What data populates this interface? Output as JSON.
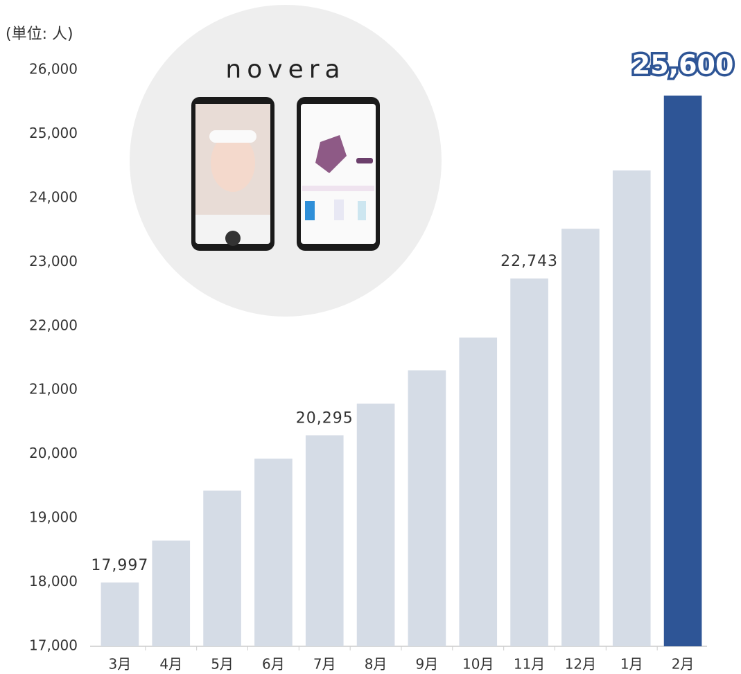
{
  "chart_data": {
    "type": "bar",
    "y_axis_label": "(単位: 人)",
    "logo": "novera",
    "categories": [
      "3月",
      "4月",
      "5月",
      "6月",
      "7月",
      "8月",
      "9月",
      "10月",
      "11月",
      "12月",
      "1月",
      "2月"
    ],
    "values": [
      17997,
      18650,
      19430,
      19930,
      20295,
      20790,
      21310,
      21820,
      22743,
      23520,
      24430,
      25600
    ],
    "value_labels": [
      "17,997",
      null,
      null,
      null,
      "20,295",
      null,
      null,
      null,
      "22,743",
      null,
      null,
      "25,600"
    ],
    "colors": [
      "#d5dce6",
      "#d5dce6",
      "#d5dce6",
      "#d5dce6",
      "#d5dce6",
      "#d5dce6",
      "#d5dce6",
      "#d5dce6",
      "#d5dce6",
      "#d5dce6",
      "#d5dce6",
      "#2e5596"
    ],
    "ylim": [
      17000,
      26000
    ],
    "yticks": [
      {
        "value": 17000,
        "label": "17,000"
      },
      {
        "value": 18000,
        "label": "18,000"
      },
      {
        "value": 19000,
        "label": "19,000"
      },
      {
        "value": 20000,
        "label": "20,000"
      },
      {
        "value": 21000,
        "label": "21,000"
      },
      {
        "value": 22000,
        "label": "22,000"
      },
      {
        "value": 23000,
        "label": "23,000"
      },
      {
        "value": 24000,
        "label": "24,000"
      },
      {
        "value": 25000,
        "label": "25,000"
      },
      {
        "value": 26000,
        "label": "26,000"
      }
    ],
    "grid": false
  }
}
